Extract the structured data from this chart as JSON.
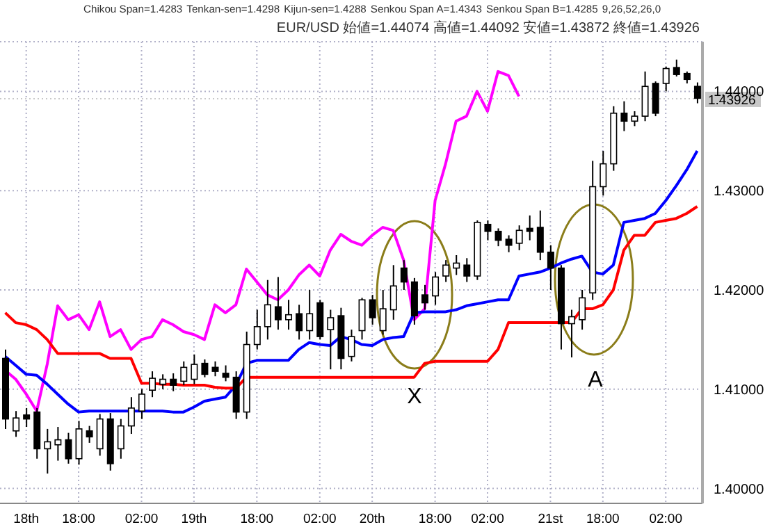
{
  "chart_data": {
    "type": "candlestick",
    "annotations": [
      "Chikou Span=1.4283",
      "Tenkan-sen=1.4298",
      "Kijun-sen=1.4288",
      "Senkou Span A=1.4343",
      "Senkou Span B=1.4285",
      "9,26,52,26,0",
      "EUR/USD 始値=1.44074 高値=1.44092 安値=1.43872 終値=1.43926",
      "X",
      "A"
    ],
    "categories": [
      null,
      null,
      "18th",
      null,
      null,
      null,
      null,
      "18:00",
      null,
      null,
      null,
      null,
      null,
      "02:00",
      null,
      null,
      null,
      null,
      "19th",
      null,
      null,
      null,
      null,
      null,
      "18:00",
      null,
      null,
      null,
      null,
      null,
      "02:00",
      null,
      null,
      null,
      null,
      "20th",
      null,
      null,
      null,
      null,
      null,
      "18:00",
      null,
      null,
      null,
      null,
      "02:00",
      null,
      null,
      null,
      null,
      null,
      "21st",
      null,
      null,
      null,
      null,
      "18:00",
      null,
      null,
      null,
      null,
      null,
      "02:00",
      null,
      null,
      null
    ],
    "ohlc": [
      [
        1.4131,
        1.414,
        1.406,
        1.407
      ],
      [
        1.4058,
        1.4078,
        1.4052,
        1.4071
      ],
      [
        1.4074,
        1.4081,
        1.4062,
        1.407
      ],
      [
        1.4077,
        1.4081,
        1.403,
        1.404
      ],
      [
        1.404,
        1.406,
        1.4015,
        1.4047
      ],
      [
        1.4044,
        1.4062,
        1.4028,
        1.4049
      ],
      [
        1.4049,
        1.4056,
        1.4025,
        1.403
      ],
      [
        1.403,
        1.4068,
        1.4024,
        1.406
      ],
      [
        1.4058,
        1.4063,
        1.4046,
        1.4052
      ],
      [
        1.404,
        1.4075,
        1.4033,
        1.407
      ],
      [
        1.407,
        1.4076,
        1.4018,
        1.4025
      ],
      [
        1.404,
        1.407,
        1.403,
        1.4063
      ],
      [
        1.4063,
        1.4092,
        1.4055,
        1.4081
      ],
      [
        1.4078,
        1.41,
        1.407,
        1.4095
      ],
      [
        1.4099,
        1.4118,
        1.4092,
        1.4111
      ],
      [
        1.4105,
        1.4115,
        1.41,
        1.411
      ],
      [
        1.411,
        1.4116,
        1.4098,
        1.4104
      ],
      [
        1.4108,
        1.4128,
        1.4104,
        1.4122
      ],
      [
        1.411,
        1.4135,
        1.4105,
        1.4125
      ],
      [
        1.4126,
        1.413,
        1.4112,
        1.4115
      ],
      [
        1.4122,
        1.4128,
        1.4113,
        1.4118
      ],
      [
        1.4116,
        1.4124,
        1.4108,
        1.4112
      ],
      [
        1.4112,
        1.4118,
        1.407,
        1.4077
      ],
      [
        1.4077,
        1.4158,
        1.407,
        1.4145
      ],
      [
        1.4145,
        1.418,
        1.414,
        1.4163
      ],
      [
        1.4163,
        1.421,
        1.415,
        1.4185
      ],
      [
        1.4183,
        1.4213,
        1.416,
        1.417
      ],
      [
        1.417,
        1.419,
        1.416,
        1.4175
      ],
      [
        1.4176,
        1.4185,
        1.415,
        1.4159
      ],
      [
        1.4159,
        1.42,
        1.415,
        1.4176
      ],
      [
        1.4187,
        1.419,
        1.415,
        1.4153
      ],
      [
        1.416,
        1.418,
        1.412,
        1.4172
      ],
      [
        1.4174,
        1.4182,
        1.412,
        1.4131
      ],
      [
        1.4133,
        1.416,
        1.4128,
        1.4153
      ],
      [
        1.4159,
        1.4192,
        1.415,
        1.419
      ],
      [
        1.419,
        1.4195,
        1.4165,
        1.4172
      ],
      [
        1.4159,
        1.42,
        1.4155,
        1.4181
      ],
      [
        1.418,
        1.4225,
        1.417,
        1.4204
      ],
      [
        1.4222,
        1.423,
        1.42,
        1.4208
      ],
      [
        1.4208,
        1.4212,
        1.4165,
        1.4174
      ],
      [
        1.4195,
        1.4205,
        1.418,
        1.4187
      ],
      [
        1.4194,
        1.4218,
        1.4185,
        1.4213
      ],
      [
        1.4214,
        1.423,
        1.4208,
        1.4225
      ],
      [
        1.4222,
        1.4235,
        1.4215,
        1.4227
      ],
      [
        1.4225,
        1.4232,
        1.4208,
        1.4214
      ],
      [
        1.4214,
        1.427,
        1.421,
        1.4268
      ],
      [
        1.4266,
        1.427,
        1.425,
        1.4259
      ],
      [
        1.4259,
        1.4262,
        1.4244,
        1.425
      ],
      [
        1.4251,
        1.4255,
        1.4238,
        1.4245
      ],
      [
        1.4247,
        1.4265,
        1.424,
        1.426
      ],
      [
        1.4262,
        1.4275,
        1.425,
        1.4259
      ],
      [
        1.4263,
        1.428,
        1.423,
        1.4238
      ],
      [
        1.4238,
        1.4245,
        1.42,
        1.4222
      ],
      [
        1.4222,
        1.4225,
        1.414,
        1.4166
      ],
      [
        1.4166,
        1.418,
        1.4132,
        1.4173
      ],
      [
        1.417,
        1.42,
        1.416,
        1.4192
      ],
      [
        1.4197,
        1.433,
        1.419,
        1.4304
      ],
      [
        1.4304,
        1.434,
        1.4295,
        1.4327
      ],
      [
        1.4327,
        1.4385,
        1.432,
        1.4378
      ],
      [
        1.4378,
        1.439,
        1.436,
        1.437
      ],
      [
        1.437,
        1.438,
        1.4365,
        1.4375
      ],
      [
        1.4375,
        1.442,
        1.437,
        1.4405
      ],
      [
        1.4408,
        1.441,
        1.4375,
        1.4378
      ],
      [
        1.4408,
        1.4425,
        1.44,
        1.4423
      ],
      [
        1.4424,
        1.4432,
        1.4415,
        1.4417
      ],
      [
        1.4418,
        1.442,
        1.4408,
        1.4412
      ],
      [
        1.4405,
        1.4409,
        1.4388,
        1.4393
      ]
    ],
    "series": [
      {
        "type": "line",
        "color": "#ff00ff",
        "values": [
          1.4119,
          1.411,
          1.4095,
          1.4078,
          1.4125,
          1.4184,
          1.417,
          1.4175,
          1.416,
          1.4188,
          1.4153,
          1.416,
          1.414,
          1.415,
          1.4153,
          1.417,
          1.4165,
          1.4158,
          1.4155,
          1.415,
          1.4185,
          1.4177,
          1.4185,
          1.4221,
          1.4208,
          1.4195,
          1.419,
          1.42,
          1.4215,
          1.4225,
          1.4214,
          1.424,
          1.4256,
          1.4249,
          1.4245,
          1.4255,
          1.4263,
          1.426,
          1.423,
          1.417,
          1.4181,
          1.429,
          1.4327,
          1.437,
          1.4375,
          1.44,
          1.438,
          1.442,
          1.4416,
          1.4395,
          null,
          null,
          null,
          null,
          null,
          null,
          null,
          null,
          null,
          null,
          null,
          null,
          null,
          null,
          null,
          null,
          null
        ]
      },
      {
        "type": "line",
        "color": "#0000ff",
        "values": [
          1.4133,
          1.4124,
          1.4115,
          1.4114,
          1.4105,
          1.4095,
          1.4085,
          1.4077,
          1.4078,
          1.4078,
          1.4078,
          1.4078,
          1.4078,
          1.4078,
          1.4078,
          1.4078,
          1.4077,
          1.4077,
          1.4082,
          1.4088,
          1.409,
          1.4092,
          1.4104,
          1.4126,
          1.4129,
          1.4129,
          1.4129,
          1.4129,
          1.414,
          1.4147,
          1.4145,
          1.4144,
          1.4153,
          1.415,
          1.4145,
          1.4144,
          1.415,
          1.4152,
          1.4153,
          1.4177,
          1.4178,
          1.4178,
          1.4178,
          1.418,
          1.4184,
          1.4186,
          1.4188,
          1.419,
          1.419,
          1.4214,
          1.4216,
          1.4218,
          1.4222,
          1.4227,
          1.4231,
          1.4234,
          1.4218,
          1.4216,
          1.4225,
          1.4268,
          1.427,
          1.4272,
          1.4277,
          1.429,
          1.4305,
          1.4321,
          1.434
        ]
      },
      {
        "type": "line",
        "color": "#ff0000",
        "values": [
          1.4177,
          1.4167,
          1.4165,
          1.416,
          1.415,
          1.4136,
          1.4136,
          1.4136,
          1.4136,
          1.4136,
          1.4131,
          1.4131,
          1.4131,
          1.4106,
          1.4106,
          1.4105,
          1.4105,
          1.4104,
          1.4104,
          1.4104,
          1.4102,
          1.4101,
          1.4101,
          1.4112,
          1.4112,
          1.4112,
          1.4112,
          1.4112,
          1.4112,
          1.4112,
          1.4112,
          1.4112,
          1.4112,
          1.4112,
          1.4112,
          1.4112,
          1.4112,
          1.4112,
          1.4112,
          1.4112,
          1.4126,
          1.4128,
          1.4128,
          1.4128,
          1.4128,
          1.4128,
          1.4128,
          1.414,
          1.4167,
          1.4167,
          1.4167,
          1.4167,
          1.4167,
          1.4167,
          1.4167,
          1.4181,
          1.4181,
          1.4185,
          1.42,
          1.424,
          1.4255,
          1.4255,
          1.4268,
          1.427,
          1.4272,
          1.4277,
          1.4284
        ]
      }
    ],
    "ylim": [
      1.3985,
      1.445
    ],
    "yticks": [
      {
        "value": 1.4,
        "label": "1.40000"
      },
      {
        "value": 1.41,
        "label": "1.41000"
      },
      {
        "value": 1.42,
        "label": "1.42000"
      },
      {
        "value": 1.43,
        "label": "1.43000"
      },
      {
        "value": 1.44,
        "label": "1.44000"
      }
    ],
    "ref_lines": [
      {
        "axis": "y",
        "value": 1.43926,
        "label": "1.43926",
        "color": "#c8c8c8"
      }
    ],
    "grid": true,
    "legend": false,
    "marker": "none",
    "line_style": "solid"
  }
}
